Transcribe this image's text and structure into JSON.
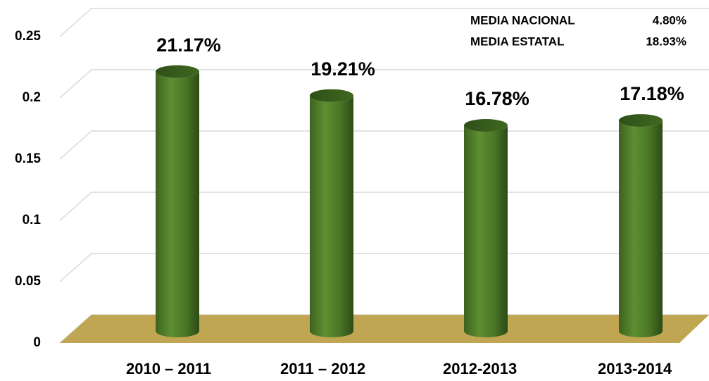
{
  "chart_data": {
    "type": "bar",
    "categories": [
      "2010 – 2011",
      "2011 – 2012",
      "2012-2013",
      "2013-2014"
    ],
    "values": [
      0.2117,
      0.1921,
      0.1678,
      0.1718
    ],
    "value_labels": [
      "21.17%",
      "19.21%",
      "16.78%",
      "17.18%"
    ],
    "color": "#4f7a28",
    "floor_color": "#c0a652",
    "ylim": [
      0,
      0.25
    ],
    "yticks": [
      0,
      0.05,
      0.1,
      0.15,
      0.2,
      0.25
    ],
    "grid": true,
    "annotations": [
      {
        "label": "MEDIA NACIONAL",
        "value": "4.80%"
      },
      {
        "label": "MEDIA ESTATAL",
        "value": "18.93%"
      }
    ]
  }
}
